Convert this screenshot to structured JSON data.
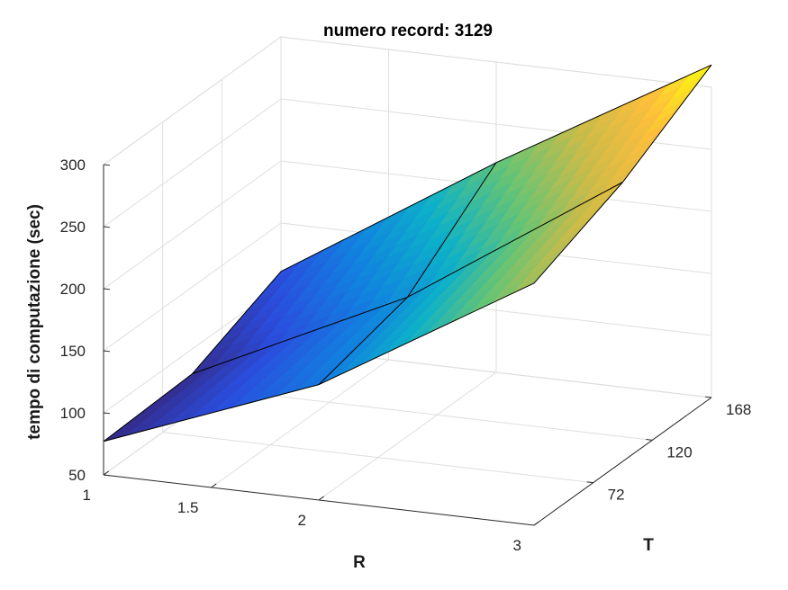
{
  "chart_data": {
    "type": "surface",
    "title": "numero record: 3129",
    "xlabel": "R",
    "ylabel": "T",
    "zlabel": "tempo di computazione (sec)",
    "x": [
      1,
      2,
      3
    ],
    "y": [
      24,
      96,
      168
    ],
    "z": [
      [
        77,
        143,
        245
      ],
      [
        80,
        162,
        275
      ],
      [
        111,
        219,
        318
      ]
    ],
    "xlim": [
      1,
      3
    ],
    "ylim": [
      24,
      168
    ],
    "zlim": [
      50,
      300
    ],
    "xticks": [
      "1",
      "1.5",
      "2",
      "3"
    ],
    "yticks": [
      "72",
      "120",
      "168"
    ],
    "zticks": [
      "50",
      "100",
      "150",
      "200",
      "250",
      "300"
    ],
    "colormap": "parula",
    "grid": true
  }
}
